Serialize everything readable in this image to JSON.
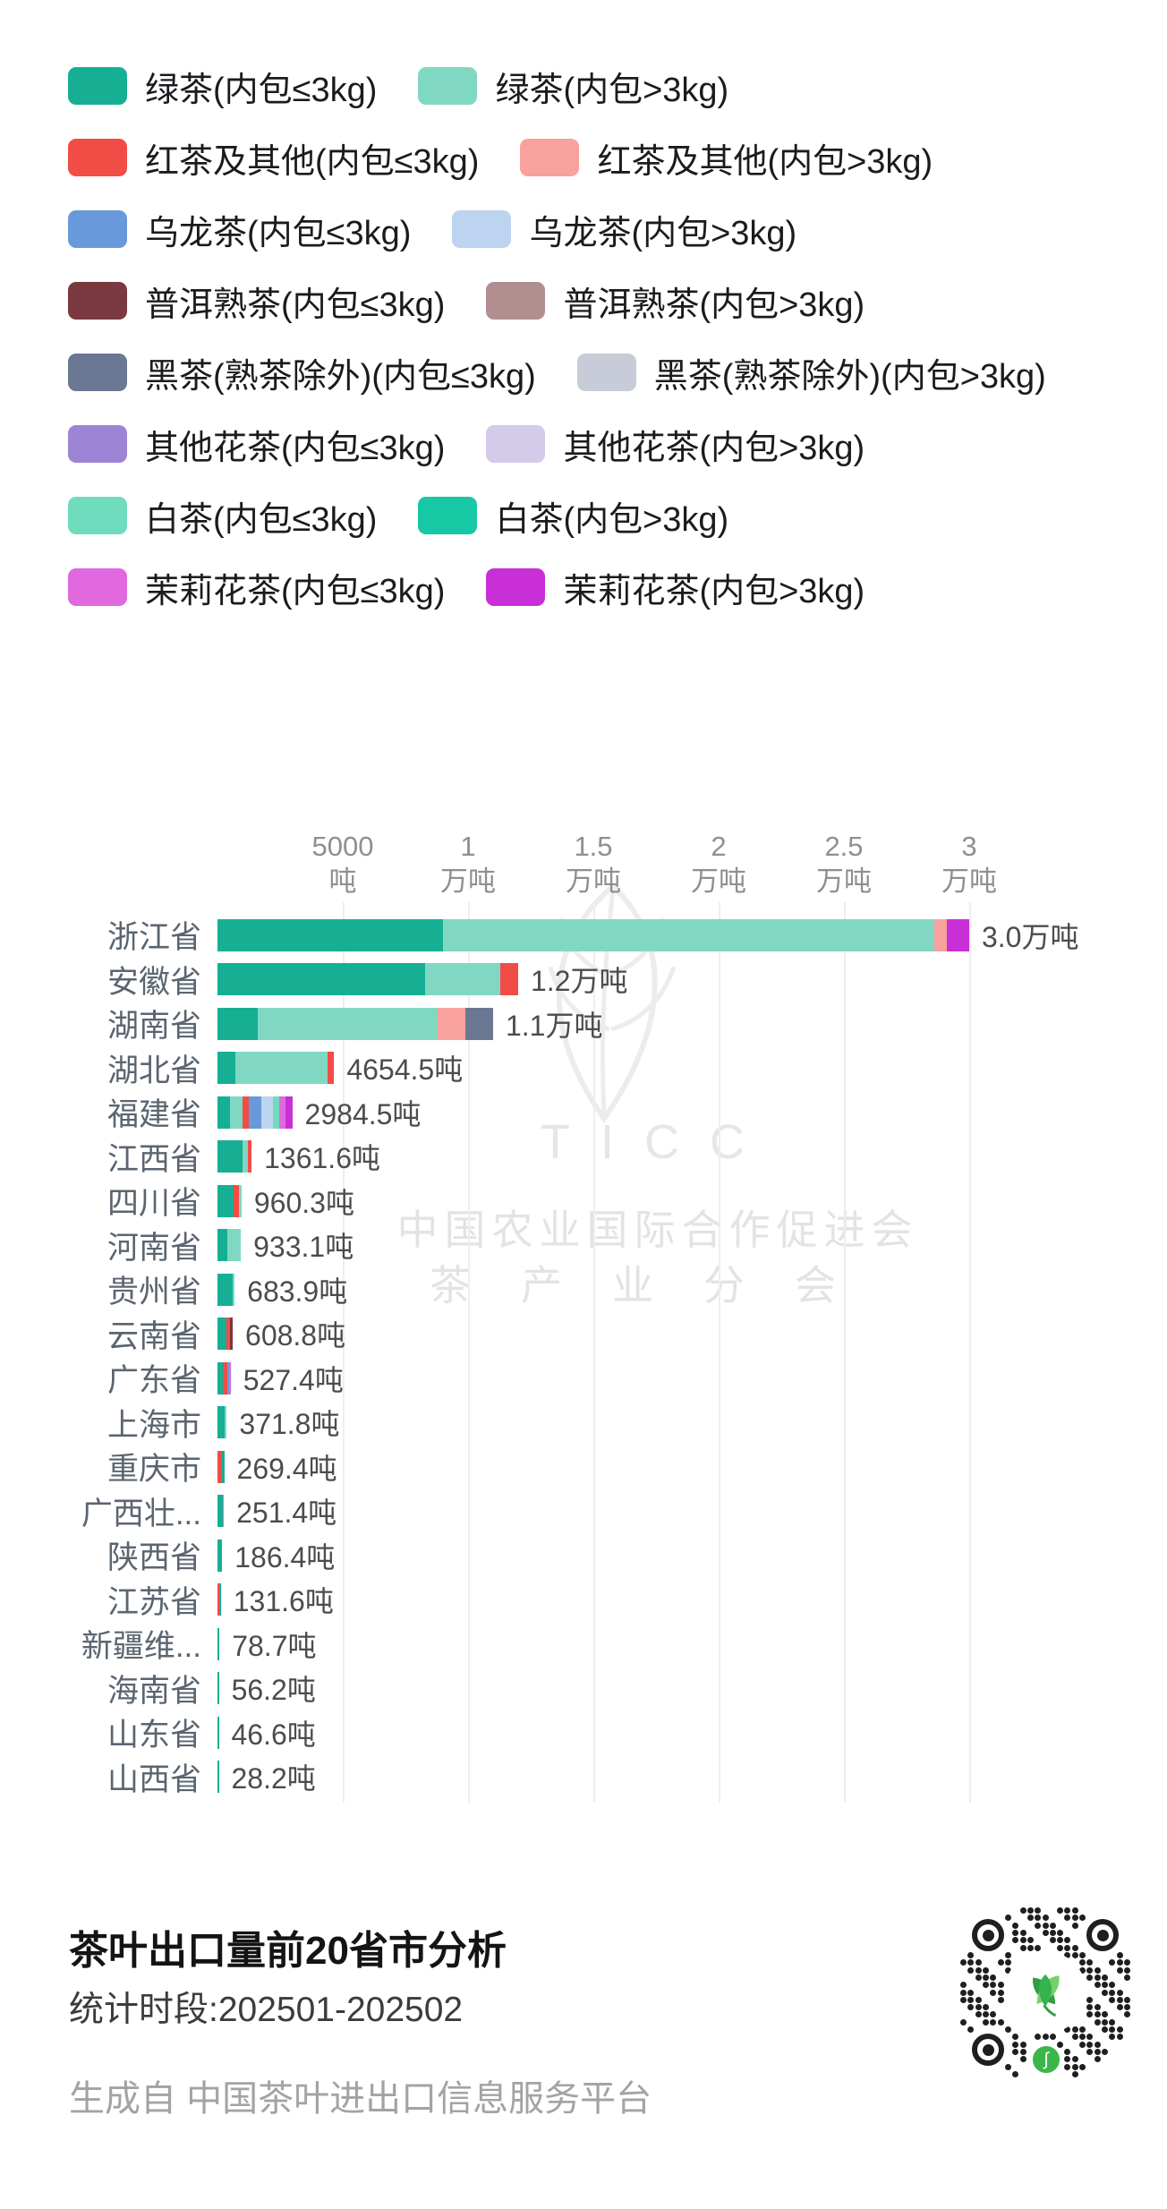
{
  "chart_data": {
    "type": "bar",
    "orientation": "horizontal",
    "stacked": true,
    "title": "茶叶出口量前20省市分析",
    "unit": "吨",
    "xlim": [
      0,
      32000
    ],
    "grid": true,
    "legend_position": "top",
    "x_ticks": [
      {
        "value": 5000,
        "label_line1": "5000",
        "label_line2": "吨"
      },
      {
        "value": 10000,
        "label_line1": "1",
        "label_line2": "万吨"
      },
      {
        "value": 15000,
        "label_line1": "1.5",
        "label_line2": "万吨"
      },
      {
        "value": 20000,
        "label_line1": "2",
        "label_line2": "万吨"
      },
      {
        "value": 25000,
        "label_line1": "2.5",
        "label_line2": "万吨"
      },
      {
        "value": 30000,
        "label_line1": "3",
        "label_line2": "万吨"
      }
    ],
    "legend": [
      {
        "key": "green_le3",
        "label": "绿茶(内包≤3kg)",
        "color": "#16af94"
      },
      {
        "key": "green_gt3",
        "label": "绿茶(内包>3kg)",
        "color": "#80d8c3"
      },
      {
        "key": "red_le3",
        "label": "红茶及其他(内包≤3kg)",
        "color": "#f24c47"
      },
      {
        "key": "red_gt3",
        "label": "红茶及其他(内包>3kg)",
        "color": "#f8a19d"
      },
      {
        "key": "oolong_le3",
        "label": "乌龙茶(内包≤3kg)",
        "color": "#6899da"
      },
      {
        "key": "oolong_gt3",
        "label": "乌龙茶(内包>3kg)",
        "color": "#bdd4f0"
      },
      {
        "key": "puer_le3",
        "label": "普洱熟茶(内包≤3kg)",
        "color": "#7a383f"
      },
      {
        "key": "puer_gt3",
        "label": "普洱熟茶(内包>3kg)",
        "color": "#b18e90"
      },
      {
        "key": "dark_le3",
        "label": "黑茶(熟茶除外)(内包≤3kg)",
        "color": "#6b7894"
      },
      {
        "key": "dark_gt3",
        "label": "黑茶(熟茶除外)(内包>3kg)",
        "color": "#c8ccd9"
      },
      {
        "key": "flower_le3",
        "label": "其他花茶(内包≤3kg)",
        "color": "#9d84d4"
      },
      {
        "key": "flower_gt3",
        "label": "其他花茶(内包>3kg)",
        "color": "#d4cbea"
      },
      {
        "key": "white_le3",
        "label": "白茶(内包≤3kg)",
        "color": "#6fdcbd"
      },
      {
        "key": "white_gt3",
        "label": "白茶(内包>3kg)",
        "color": "#17c8a4"
      },
      {
        "key": "jasmine_le3",
        "label": "茉莉花茶(内包≤3kg)",
        "color": "#e168df"
      },
      {
        "key": "jasmine_gt3",
        "label": "茉莉花茶(内包>3kg)",
        "color": "#c92fd6"
      }
    ],
    "rows": [
      {
        "label": "浙江省",
        "total": 30000,
        "total_label": "3.0万吨",
        "segments": [
          {
            "key": "green_le3",
            "value": 9000
          },
          {
            "key": "green_gt3",
            "value": 19600
          },
          {
            "key": "red_gt3",
            "value": 500
          },
          {
            "key": "jasmine_gt3",
            "value": 900
          }
        ]
      },
      {
        "label": "安徽省",
        "total": 12000,
        "total_label": "1.2万吨",
        "segments": [
          {
            "key": "green_le3",
            "value": 8300
          },
          {
            "key": "green_gt3",
            "value": 3000
          },
          {
            "key": "red_le3",
            "value": 700
          }
        ]
      },
      {
        "label": "湖南省",
        "total": 11000,
        "total_label": "1.1万吨",
        "segments": [
          {
            "key": "green_le3",
            "value": 1600
          },
          {
            "key": "green_gt3",
            "value": 7200
          },
          {
            "key": "red_gt3",
            "value": 1100
          },
          {
            "key": "dark_le3",
            "value": 1100
          }
        ]
      },
      {
        "label": "湖北省",
        "total": 4654.5,
        "total_label": "4654.5吨",
        "segments": [
          {
            "key": "green_le3",
            "value": 700
          },
          {
            "key": "green_gt3",
            "value": 3700
          },
          {
            "key": "red_le3",
            "value": 254.5
          }
        ]
      },
      {
        "label": "福建省",
        "total": 2984.5,
        "total_label": "2984.5吨",
        "segments": [
          {
            "key": "green_le3",
            "value": 500
          },
          {
            "key": "green_gt3",
            "value": 500
          },
          {
            "key": "red_le3",
            "value": 250
          },
          {
            "key": "oolong_le3",
            "value": 500
          },
          {
            "key": "oolong_gt3",
            "value": 450
          },
          {
            "key": "white_le3",
            "value": 250
          },
          {
            "key": "jasmine_le3",
            "value": 250
          },
          {
            "key": "jasmine_gt3",
            "value": 284.5
          }
        ]
      },
      {
        "label": "江西省",
        "total": 1361.6,
        "total_label": "1361.6吨",
        "segments": [
          {
            "key": "green_le3",
            "value": 1000
          },
          {
            "key": "green_gt3",
            "value": 200
          },
          {
            "key": "red_le3",
            "value": 161.6
          }
        ]
      },
      {
        "label": "四川省",
        "total": 960.3,
        "total_label": "960.3吨",
        "segments": [
          {
            "key": "green_le3",
            "value": 650
          },
          {
            "key": "red_le3",
            "value": 200
          },
          {
            "key": "green_gt3",
            "value": 110.3
          }
        ]
      },
      {
        "label": "河南省",
        "total": 933.1,
        "total_label": "933.1吨",
        "segments": [
          {
            "key": "green_le3",
            "value": 400
          },
          {
            "key": "green_gt3",
            "value": 533.1
          }
        ]
      },
      {
        "label": "贵州省",
        "total": 683.9,
        "total_label": "683.9吨",
        "segments": [
          {
            "key": "green_le3",
            "value": 600
          },
          {
            "key": "green_gt3",
            "value": 83.9
          }
        ]
      },
      {
        "label": "云南省",
        "total": 608.8,
        "total_label": "608.8吨",
        "segments": [
          {
            "key": "green_le3",
            "value": 350
          },
          {
            "key": "red_le3",
            "value": 150
          },
          {
            "key": "puer_le3",
            "value": 108.8
          }
        ]
      },
      {
        "label": "广东省",
        "total": 527.4,
        "total_label": "527.4吨",
        "segments": [
          {
            "key": "green_le3",
            "value": 200
          },
          {
            "key": "red_le3",
            "value": 180
          },
          {
            "key": "oolong_le3",
            "value": 80
          },
          {
            "key": "jasmine_le3",
            "value": 67.4
          }
        ]
      },
      {
        "label": "上海市",
        "total": 371.8,
        "total_label": "371.8吨",
        "segments": [
          {
            "key": "green_le3",
            "value": 300
          },
          {
            "key": "green_gt3",
            "value": 71.8
          }
        ]
      },
      {
        "label": "重庆市",
        "total": 269.4,
        "total_label": "269.4吨",
        "segments": [
          {
            "key": "red_le3",
            "value": 150
          },
          {
            "key": "green_le3",
            "value": 119.4
          }
        ]
      },
      {
        "label": "广西壮...",
        "total": 251.4,
        "total_label": "251.4吨",
        "segments": [
          {
            "key": "green_le3",
            "value": 200
          },
          {
            "key": "jasmine_le3",
            "value": 51.4
          }
        ]
      },
      {
        "label": "陕西省",
        "total": 186.4,
        "total_label": "186.4吨",
        "segments": [
          {
            "key": "green_le3",
            "value": 186.4
          }
        ]
      },
      {
        "label": "江苏省",
        "total": 131.6,
        "total_label": "131.6吨",
        "segments": [
          {
            "key": "red_le3",
            "value": 80
          },
          {
            "key": "green_le3",
            "value": 51.6
          }
        ]
      },
      {
        "label": "新疆维...",
        "total": 78.7,
        "total_label": "78.7吨",
        "segments": [
          {
            "key": "green_le3",
            "value": 78.7
          }
        ]
      },
      {
        "label": "海南省",
        "total": 56.2,
        "total_label": "56.2吨",
        "segments": [
          {
            "key": "green_le3",
            "value": 56.2
          }
        ]
      },
      {
        "label": "山东省",
        "total": 46.6,
        "total_label": "46.6吨",
        "segments": [
          {
            "key": "green_le3",
            "value": 46.6
          }
        ]
      },
      {
        "label": "山西省",
        "total": 28.2,
        "total_label": "28.2吨",
        "segments": [
          {
            "key": "green_le3",
            "value": 28.2
          }
        ]
      }
    ]
  },
  "watermark": {
    "line1": "TICC",
    "line2": "中国农业国际合作促进会",
    "line3": "茶产业分会"
  },
  "footer": {
    "title": "茶叶出口量前20省市分析",
    "period": "统计时段:202501-202502",
    "source": "生成自 中国茶叶进出口信息服务平台"
  },
  "colors": {
    "qr_green": "#3cb54a",
    "grid": "#eeeeee",
    "axis_text": "#8f8f8f",
    "row_label_text": "#5b6570",
    "value_text": "#4c4c4c"
  }
}
